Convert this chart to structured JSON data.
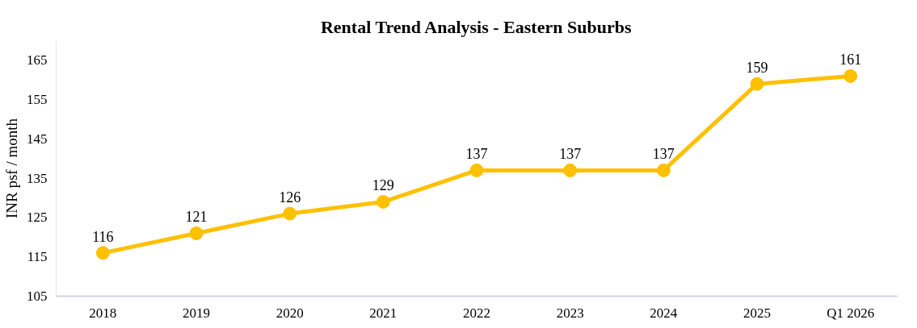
{
  "chart_data": {
    "type": "line",
    "title": "Rental Trend Analysis - Eastern Suburbs",
    "ylabel": "INR psf / month",
    "categories": [
      "2018",
      "2019",
      "2020",
      "2021",
      "2022",
      "2023",
      "2024",
      "2025",
      "Q1 2026"
    ],
    "series": [
      {
        "color": "#ffc000",
        "values": [
          116,
          121,
          126,
          129,
          137,
          137,
          137,
          159,
          161
        ]
      }
    ],
    "ylim": [
      105,
      170
    ],
    "yticks": [
      105,
      115,
      125,
      135,
      145,
      155,
      165
    ],
    "grid": false,
    "marker": "circle",
    "line_style": "solid",
    "data_labels": true
  }
}
